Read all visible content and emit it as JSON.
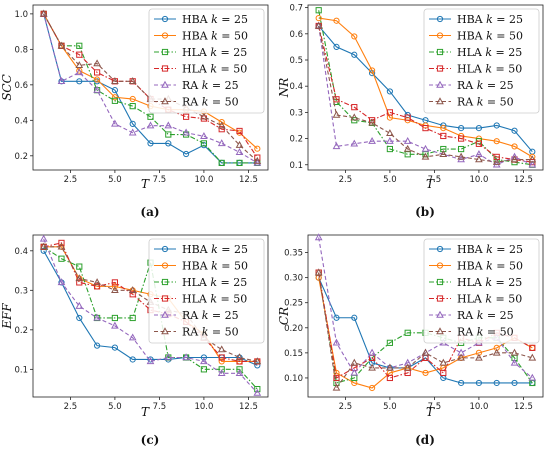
{
  "series_colors": [
    "#1f77b4",
    "#ff7f0e",
    "#2ca02c",
    "#d62728",
    "#9467bd",
    "#8c564b"
  ],
  "legend_labels": [
    {
      "method": "HBA",
      "k": "k",
      "eq": " = 25"
    },
    {
      "method": "HBA",
      "k": "k",
      "eq": " = 50"
    },
    {
      "method": "HLA",
      "k": "k",
      "eq": " = 25"
    },
    {
      "method": "HLA",
      "k": "k",
      "eq": " = 50"
    },
    {
      "method": "RA",
      "k": "k",
      "eq": " = 25"
    },
    {
      "method": "RA",
      "k": "k",
      "eq": " = 50"
    }
  ],
  "chart_data": [
    {
      "type": "line",
      "panel_label": "(a)",
      "xlabel": "T",
      "ylabel": "SCC",
      "xlim": [
        0.4,
        13.6
      ],
      "ylim": [
        0.12,
        1.05
      ],
      "xticks": [
        2.5,
        5.0,
        7.5,
        10.0,
        12.5
      ],
      "yticks": [
        0.2,
        0.4,
        0.6,
        0.8,
        1.0
      ],
      "ytick_decimals": 1,
      "legend_position": "top-right",
      "x": [
        1,
        2,
        3,
        4,
        5,
        6,
        7,
        8,
        9,
        10,
        11,
        12,
        13
      ],
      "series": [
        {
          "name": "HBA k = 25",
          "marker": "circle",
          "dash": "solid",
          "values": [
            1.0,
            0.62,
            0.62,
            0.62,
            0.57,
            0.38,
            0.27,
            0.27,
            0.21,
            0.26,
            0.16,
            0.16,
            0.16
          ]
        },
        {
          "name": "HBA k = 50",
          "marker": "circle",
          "dash": "solid",
          "values": [
            1.0,
            0.82,
            0.68,
            0.63,
            0.53,
            0.52,
            0.48,
            0.46,
            0.46,
            0.45,
            0.39,
            0.33,
            0.24
          ]
        },
        {
          "name": "HLA k = 25",
          "marker": "square",
          "dash": "dashdot",
          "values": [
            1.0,
            0.82,
            0.82,
            0.57,
            0.51,
            0.48,
            0.42,
            0.32,
            0.32,
            0.27,
            0.16,
            0.16,
            0.16
          ]
        },
        {
          "name": "HLA k = 50",
          "marker": "square",
          "dash": "dashdot",
          "values": [
            1.0,
            0.82,
            0.77,
            0.67,
            0.62,
            0.62,
            0.52,
            0.46,
            0.42,
            0.41,
            0.35,
            0.34,
            0.19
          ]
        },
        {
          "name": "RA k = 25",
          "marker": "triangle",
          "dash": "dashed",
          "values": [
            1.0,
            0.62,
            0.67,
            0.57,
            0.38,
            0.33,
            0.37,
            0.37,
            0.33,
            0.31,
            0.27,
            0.22,
            0.16
          ]
        },
        {
          "name": "RA k = 50",
          "marker": "triangle",
          "dash": "dashed",
          "values": [
            1.0,
            0.82,
            0.71,
            0.72,
            0.62,
            0.62,
            0.52,
            0.52,
            0.47,
            0.42,
            0.37,
            0.26,
            0.17
          ]
        }
      ]
    },
    {
      "type": "line",
      "panel_label": "(b)",
      "xlabel": "T",
      "ylabel": "NR",
      "xlim": [
        0.4,
        13.6
      ],
      "ylim": [
        0.08,
        0.71
      ],
      "xticks": [
        2.5,
        5.0,
        7.5,
        10.0,
        12.5
      ],
      "yticks": [
        0.1,
        0.2,
        0.3,
        0.4,
        0.5,
        0.6,
        0.7
      ],
      "ytick_decimals": 1,
      "legend_position": "top-right",
      "x": [
        1,
        2,
        3,
        4,
        5,
        6,
        7,
        8,
        9,
        10,
        11,
        12,
        13
      ],
      "series": [
        {
          "name": "HBA k = 25",
          "marker": "circle",
          "dash": "solid",
          "values": [
            0.63,
            0.55,
            0.52,
            0.45,
            0.38,
            0.29,
            0.27,
            0.25,
            0.24,
            0.24,
            0.25,
            0.23,
            0.15
          ]
        },
        {
          "name": "HBA k = 50",
          "marker": "circle",
          "dash": "solid",
          "values": [
            0.66,
            0.65,
            0.59,
            0.46,
            0.28,
            0.27,
            0.25,
            0.24,
            0.21,
            0.2,
            0.19,
            0.17,
            0.13
          ]
        },
        {
          "name": "HLA k = 25",
          "marker": "square",
          "dash": "dashdot",
          "values": [
            0.69,
            0.34,
            0.27,
            0.26,
            0.16,
            0.14,
            0.14,
            0.16,
            0.16,
            0.19,
            0.12,
            0.11,
            0.1
          ]
        },
        {
          "name": "HLA k = 50",
          "marker": "square",
          "dash": "dashdot",
          "values": [
            0.63,
            0.35,
            0.32,
            0.27,
            0.3,
            0.28,
            0.24,
            0.21,
            0.2,
            0.18,
            0.13,
            0.12,
            0.11
          ]
        },
        {
          "name": "RA k = 25",
          "marker": "triangle",
          "dash": "dashed",
          "values": [
            0.63,
            0.17,
            0.18,
            0.19,
            0.19,
            0.19,
            0.16,
            0.14,
            0.12,
            0.14,
            0.1,
            0.13,
            0.1
          ]
        },
        {
          "name": "RA k = 50",
          "marker": "triangle",
          "dash": "dashed",
          "values": [
            0.63,
            0.29,
            0.28,
            0.26,
            0.22,
            0.16,
            0.13,
            0.14,
            0.13,
            0.12,
            0.11,
            0.12,
            0.12
          ]
        }
      ]
    },
    {
      "type": "line",
      "panel_label": "(c)",
      "xlabel": "T",
      "ylabel": "EFF",
      "xlim": [
        0.4,
        13.6
      ],
      "ylim": [
        0.03,
        0.44
      ],
      "xticks": [
        2.5,
        5.0,
        7.5,
        10.0,
        12.5
      ],
      "yticks": [
        0.1,
        0.2,
        0.3,
        0.4
      ],
      "ytick_decimals": 1,
      "legend_position": "top-right",
      "x": [
        1,
        2,
        3,
        4,
        5,
        6,
        7,
        8,
        9,
        10,
        11,
        12,
        13
      ],
      "series": [
        {
          "name": "HBA k = 25",
          "marker": "circle",
          "dash": "solid",
          "values": [
            0.4,
            0.32,
            0.23,
            0.16,
            0.155,
            0.125,
            0.125,
            0.125,
            0.13,
            0.13,
            0.13,
            0.13,
            0.11
          ]
        },
        {
          "name": "HBA k = 50",
          "marker": "circle",
          "dash": "solid",
          "values": [
            0.41,
            0.41,
            0.33,
            0.31,
            0.31,
            0.3,
            0.29,
            0.28,
            0.22,
            0.19,
            0.12,
            0.12,
            0.12
          ]
        },
        {
          "name": "HLA k = 25",
          "marker": "square",
          "dash": "dashdot",
          "values": [
            0.41,
            0.38,
            0.36,
            0.23,
            0.23,
            0.23,
            0.37,
            0.13,
            0.13,
            0.1,
            0.1,
            0.1,
            0.05
          ]
        },
        {
          "name": "HLA k = 50",
          "marker": "square",
          "dash": "dashdot",
          "values": [
            0.41,
            0.42,
            0.32,
            0.31,
            0.32,
            0.29,
            0.25,
            0.24,
            0.22,
            0.18,
            0.13,
            0.12,
            0.12
          ]
        },
        {
          "name": "RA k = 25",
          "marker": "triangle",
          "dash": "dashed",
          "values": [
            0.43,
            0.32,
            0.26,
            0.23,
            0.21,
            0.18,
            0.12,
            0.13,
            0.13,
            0.12,
            0.09,
            0.09,
            0.04
          ]
        },
        {
          "name": "RA k = 50",
          "marker": "triangle",
          "dash": "dashed",
          "values": [
            0.41,
            0.41,
            0.33,
            0.32,
            0.3,
            0.3,
            0.27,
            0.25,
            0.24,
            0.18,
            0.15,
            0.13,
            0.12
          ]
        }
      ]
    },
    {
      "type": "line",
      "panel_label": "(d)",
      "xlabel": "T",
      "ylabel": "CR",
      "xlim": [
        0.4,
        13.6
      ],
      "ylim": [
        0.062,
        0.385
      ],
      "xticks": [
        2.5,
        5.0,
        7.5,
        10.0,
        12.5
      ],
      "yticks": [
        0.1,
        0.15,
        0.2,
        0.25,
        0.3,
        0.35
      ],
      "ytick_decimals": 2,
      "legend_position": "top-right",
      "x": [
        1,
        2,
        3,
        4,
        5,
        6,
        7,
        8,
        9,
        10,
        11,
        12,
        13
      ],
      "series": [
        {
          "name": "HBA k = 25",
          "marker": "circle",
          "dash": "solid",
          "values": [
            0.3,
            0.22,
            0.22,
            0.13,
            0.12,
            0.12,
            0.14,
            0.1,
            0.09,
            0.09,
            0.09,
            0.09,
            0.09
          ]
        },
        {
          "name": "HBA k = 50",
          "marker": "circle",
          "dash": "solid",
          "values": [
            0.3,
            0.11,
            0.09,
            0.08,
            0.11,
            0.12,
            0.11,
            0.12,
            0.14,
            0.15,
            0.16,
            0.18,
            0.16
          ]
        },
        {
          "name": "HLA k = 25",
          "marker": "square",
          "dash": "dashdot",
          "values": [
            0.31,
            0.09,
            0.1,
            0.14,
            0.17,
            0.19,
            0.19,
            0.18,
            0.17,
            0.18,
            0.18,
            0.14,
            0.09
          ]
        },
        {
          "name": "HLA k = 50",
          "marker": "square",
          "dash": "dashdot",
          "values": [
            0.31,
            0.1,
            0.12,
            0.14,
            0.1,
            0.11,
            0.14,
            0.11,
            0.18,
            0.17,
            0.19,
            0.18,
            0.16
          ]
        },
        {
          "name": "RA k = 25",
          "marker": "triangle",
          "dash": "dashed",
          "values": [
            0.38,
            0.17,
            0.11,
            0.15,
            0.12,
            0.13,
            0.15,
            0.17,
            0.15,
            0.17,
            0.18,
            0.13,
            0.1
          ]
        },
        {
          "name": "RA k = 50",
          "marker": "triangle",
          "dash": "dashed",
          "values": [
            0.31,
            0.08,
            0.13,
            0.12,
            0.12,
            0.12,
            0.15,
            0.13,
            0.14,
            0.14,
            0.15,
            0.15,
            0.14
          ]
        }
      ]
    }
  ]
}
